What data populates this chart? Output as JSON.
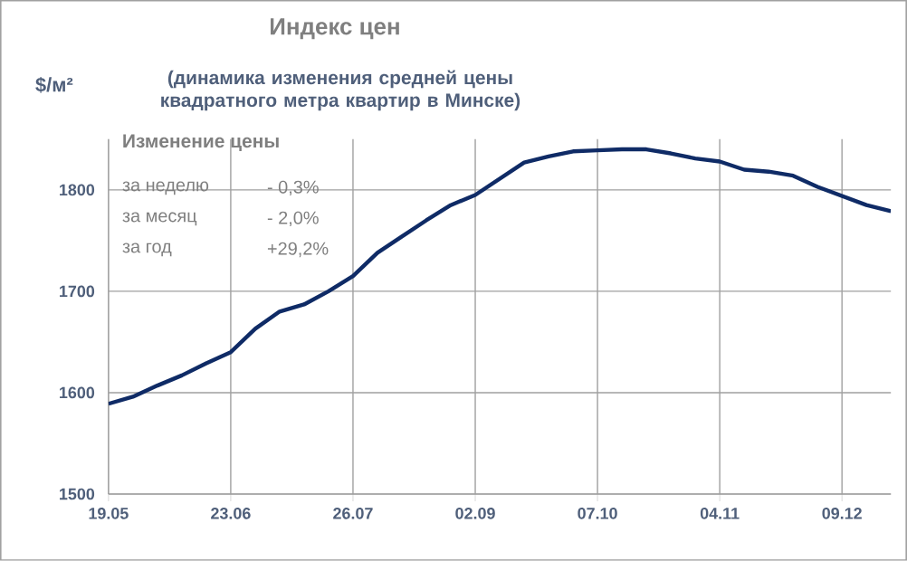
{
  "chart_data": {
    "type": "line",
    "title": "Индекс цен",
    "subtitle": "(динамика изменения средней цены квадратного метра квартир в Минске)",
    "ylabel": "$/м²",
    "categories": [
      "19.05",
      null,
      null,
      null,
      null,
      "23.06",
      null,
      null,
      null,
      null,
      "26.07",
      null,
      null,
      null,
      null,
      "02.09",
      null,
      null,
      null,
      null,
      "07.10",
      null,
      null,
      null,
      null,
      "04.11",
      null,
      null,
      null,
      null,
      "09.12",
      null,
      null
    ],
    "series": [
      {
        "color": "#0f2b66",
        "values": [
          1589,
          1596,
          1607,
          1617,
          1629,
          1640,
          1663,
          1680,
          1687,
          1700,
          1715,
          1738,
          1754,
          1770,
          1785,
          1795,
          1811,
          1827,
          1833,
          1838,
          1839,
          1840,
          1840,
          1836,
          1831,
          1828,
          1820,
          1818,
          1814,
          1803,
          1794,
          1785,
          1779
        ]
      }
    ],
    "ylim": [
      1500,
      1850
    ],
    "yticks": [
      1500,
      1600,
      1700,
      1800
    ],
    "grid": true,
    "marker": "none",
    "annotations": [
      "Изменение цены",
      "за неделю",
      "- 0,3%",
      "за месяц",
      "- 2,0%",
      "за год",
      "+29,2%"
    ]
  }
}
